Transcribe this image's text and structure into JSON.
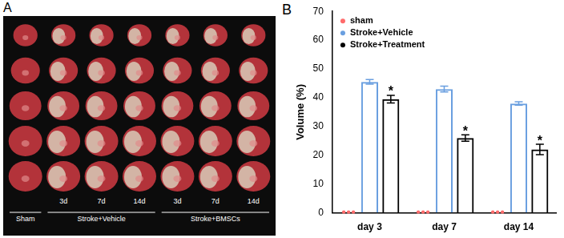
{
  "panel_a": {
    "label": "A",
    "groups": [
      {
        "label": "Sham",
        "days": []
      },
      {
        "label": "Stroke+Vehicle",
        "days": [
          "3d",
          "7d",
          "14d"
        ]
      },
      {
        "label": "Stroke+BMSCs",
        "days": [
          "3d",
          "7d",
          "14d"
        ]
      }
    ]
  },
  "chart_data": {
    "type": "bar",
    "panel_label": "B",
    "y_label": "Volume (%)",
    "categories": [
      "day 3",
      "day 7",
      "day 14"
    ],
    "series": [
      {
        "name": "sham",
        "color": "#ff6b6b",
        "values": [
          0,
          0,
          0
        ],
        "marker": "circle"
      },
      {
        "name": "Stroke+Vehicle",
        "color": "#6a9fe0",
        "values": [
          45.5,
          43,
          38
        ],
        "errors": [
          0.8,
          1.0,
          0.6
        ]
      },
      {
        "name": "Stroke+Treatment",
        "color": "#000000",
        "values": [
          39.5,
          26,
          22
        ],
        "errors": [
          1.3,
          1.1,
          1.8
        ]
      }
    ],
    "annotations": [
      {
        "series": "Stroke+Treatment",
        "category": "day 3",
        "text": "*"
      },
      {
        "series": "Stroke+Treatment",
        "category": "day 7",
        "text": "*"
      },
      {
        "series": "Stroke+Treatment",
        "category": "day 14",
        "text": "*"
      }
    ],
    "ylim": [
      0,
      70
    ],
    "yticks": [
      0,
      10,
      20,
      30,
      40,
      50,
      60,
      70
    ],
    "grid": false,
    "legend": "upper left"
  }
}
